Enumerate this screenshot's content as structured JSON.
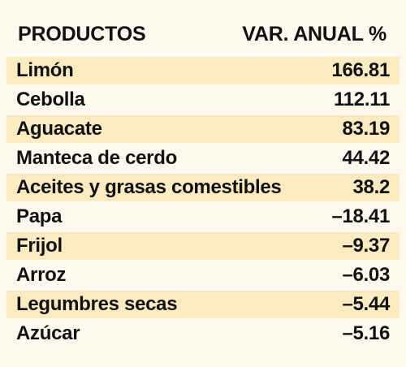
{
  "chart_data": {
    "type": "table",
    "columns": [
      "PRODUCTOS",
      "VAR. ANUAL %"
    ],
    "rows": [
      {
        "product": "Limón",
        "value": "166.81"
      },
      {
        "product": "Cebolla",
        "value": "112.11"
      },
      {
        "product": "Aguacate",
        "value": "83.19"
      },
      {
        "product": "Manteca de cerdo",
        "value": "44.42"
      },
      {
        "product": "Aceites y grasas comestibles",
        "value": "38.2"
      },
      {
        "product": "Papa",
        "value": "–18.41"
      },
      {
        "product": "Frijol",
        "value": "–9.37"
      },
      {
        "product": "Arroz",
        "value": "–6.03"
      },
      {
        "product": "Legumbres secas",
        "value": "–5.44"
      },
      {
        "product": "Azúcar",
        "value": "–5.16"
      }
    ],
    "colors": {
      "background": "#FEF9EE",
      "row_shade": "#FBEBC0",
      "text": "#111111"
    }
  }
}
